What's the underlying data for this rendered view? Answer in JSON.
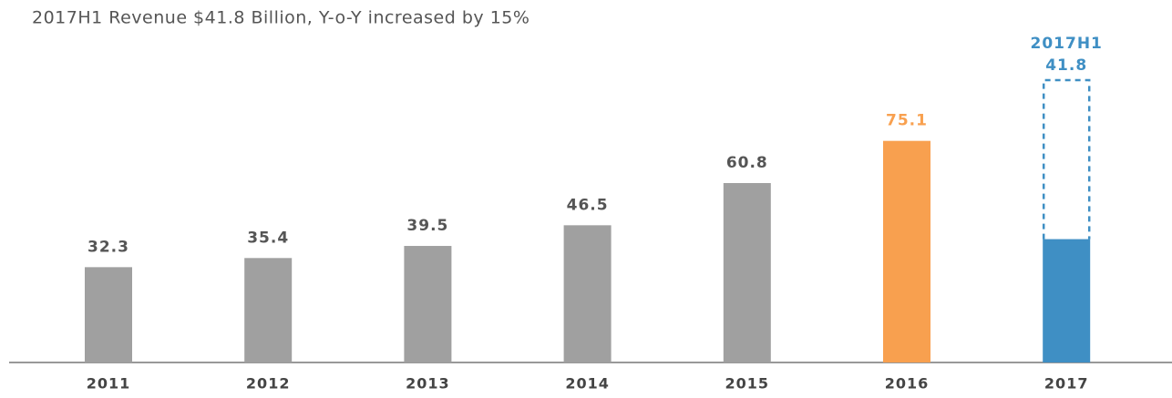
{
  "chart_data": {
    "type": "bar",
    "title": "2017H1 Revenue $41.8 Billion, Y-o-Y increased by 15%",
    "categories": [
      "2011",
      "2012",
      "2013",
      "2014",
      "2015",
      "2016",
      "2017"
    ],
    "values": [
      32.3,
      35.4,
      39.5,
      46.5,
      60.8,
      75.1,
      41.8
    ],
    "colors": [
      "#a0a0a0",
      "#a0a0a0",
      "#a0a0a0",
      "#a0a0a0",
      "#a0a0a0",
      "#f8a04f",
      "#3f8fc4"
    ],
    "value_label_colors": [
      "#555555",
      "#555555",
      "#555555",
      "#555555",
      "#555555",
      "#f8a04f",
      "#3f8fc4"
    ],
    "annotation": "2017H1"
  }
}
